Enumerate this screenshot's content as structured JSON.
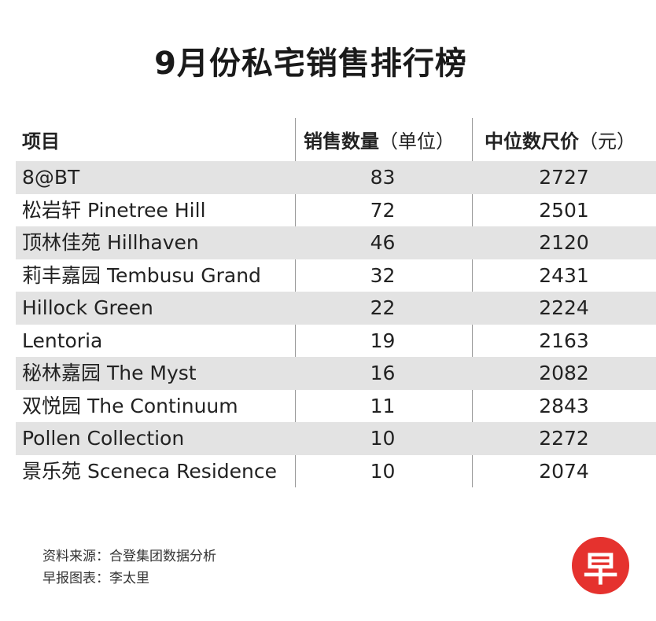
{
  "title": "9月份私宅销售排行榜",
  "chart_data": {
    "type": "table",
    "title": "9月份私宅销售排行榜",
    "columns": [
      "项目",
      "销售数量（单位）",
      "中位数尺价（元）"
    ],
    "rows": [
      {
        "project": "8@BT",
        "units_sold": 83,
        "median_psf": 2727
      },
      {
        "project": "松岩轩 Pinetree Hill",
        "units_sold": 72,
        "median_psf": 2501
      },
      {
        "project": "顶林佳苑 Hillhaven",
        "units_sold": 46,
        "median_psf": 2120
      },
      {
        "project": "莉丰嘉园 Tembusu Grand",
        "units_sold": 32,
        "median_psf": 2431
      },
      {
        "project": "Hillock Green",
        "units_sold": 22,
        "median_psf": 2224
      },
      {
        "project": "Lentoria",
        "units_sold": 19,
        "median_psf": 2163
      },
      {
        "project": "秘林嘉园 The Myst",
        "units_sold": 16,
        "median_psf": 2082
      },
      {
        "project": "双悦园 The Continuum",
        "units_sold": 11,
        "median_psf": 2843
      },
      {
        "project": "Pollen Collection",
        "units_sold": 10,
        "median_psf": 2272
      },
      {
        "project": "景乐苑 Sceneca Residence",
        "units_sold": 10,
        "median_psf": 2074
      }
    ]
  },
  "header": {
    "col1": "项目",
    "col2_main": "销售数量",
    "col2_unit": "（单位）",
    "col3_main": "中位数尺价",
    "col3_unit": "（元）"
  },
  "footer": {
    "source": "资料来源：合登集团数据分析",
    "credit": "早报图表：李太里"
  },
  "logo": {
    "glyph": "早",
    "color": "#e5322e"
  }
}
